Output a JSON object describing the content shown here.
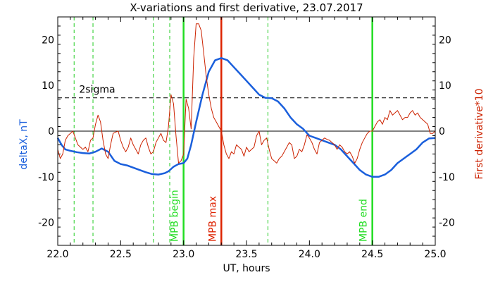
{
  "chart_data": {
    "type": "line",
    "title": "X-variations and first derivative, 23.07.2017",
    "xlabel": "UT, hours",
    "ylabel_left": "deltaX, nT",
    "ylabel_right": "First derivative*10",
    "xlim": [
      22.0,
      25.0
    ],
    "ylim_left": [
      -25,
      25
    ],
    "ylim_right": [
      -25,
      25
    ],
    "xticks": [
      22.0,
      22.5,
      23.0,
      23.5,
      24.0,
      24.5,
      25.0
    ],
    "xtick_labels": [
      "22.0",
      "22.5",
      "23.0",
      "23.5",
      "24.0",
      "24.5",
      "25.0"
    ],
    "yticks": [
      -20,
      -10,
      0,
      10,
      20
    ],
    "ytick_labels": [
      "-20",
      "-10",
      "0",
      "10",
      "20"
    ],
    "grid": false,
    "colors": {
      "deltaX": "#1a5fdc",
      "derivative": "#cc2200",
      "mpb_lines": "#22dd22",
      "mpb_max": "#dd2200",
      "dashed_green": "#22cc22",
      "axis": "#000000",
      "left_label": "#1a5fdc",
      "right_label": "#cc2200"
    },
    "series": [
      {
        "key": "deltaX",
        "values": [
          [
            22.0,
            -1.5
          ],
          [
            22.03,
            -3.0
          ],
          [
            22.06,
            -4.0
          ],
          [
            22.1,
            -4.3
          ],
          [
            22.15,
            -4.6
          ],
          [
            22.2,
            -4.8
          ],
          [
            22.25,
            -4.9
          ],
          [
            22.3,
            -4.5
          ],
          [
            22.35,
            -3.8
          ],
          [
            22.4,
            -4.5
          ],
          [
            22.45,
            -6.5
          ],
          [
            22.5,
            -7.2
          ],
          [
            22.55,
            -7.5
          ],
          [
            22.6,
            -8.0
          ],
          [
            22.65,
            -8.5
          ],
          [
            22.7,
            -9.0
          ],
          [
            22.75,
            -9.4
          ],
          [
            22.8,
            -9.5
          ],
          [
            22.85,
            -9.2
          ],
          [
            22.88,
            -8.8
          ],
          [
            22.92,
            -7.8
          ],
          [
            22.96,
            -7.2
          ],
          [
            23.0,
            -7.0
          ],
          [
            23.03,
            -6.0
          ],
          [
            23.06,
            -3.0
          ],
          [
            23.1,
            2.0
          ],
          [
            23.15,
            8.0
          ],
          [
            23.2,
            13.0
          ],
          [
            23.25,
            15.5
          ],
          [
            23.3,
            16.0
          ],
          [
            23.35,
            15.5
          ],
          [
            23.4,
            14.0
          ],
          [
            23.45,
            12.5
          ],
          [
            23.5,
            11.0
          ],
          [
            23.55,
            9.5
          ],
          [
            23.6,
            8.0
          ],
          [
            23.65,
            7.3
          ],
          [
            23.7,
            7.2
          ],
          [
            23.75,
            6.5
          ],
          [
            23.8,
            5.0
          ],
          [
            23.85,
            3.0
          ],
          [
            23.9,
            1.5
          ],
          [
            23.95,
            0.5
          ],
          [
            24.0,
            -1.0
          ],
          [
            24.05,
            -1.5
          ],
          [
            24.1,
            -2.0
          ],
          [
            24.15,
            -2.5
          ],
          [
            24.2,
            -3.0
          ],
          [
            24.25,
            -4.0
          ],
          [
            24.3,
            -5.5
          ],
          [
            24.35,
            -7.0
          ],
          [
            24.4,
            -8.5
          ],
          [
            24.45,
            -9.5
          ],
          [
            24.5,
            -10.0
          ],
          [
            24.55,
            -10.0
          ],
          [
            24.6,
            -9.5
          ],
          [
            24.65,
            -8.5
          ],
          [
            24.7,
            -7.0
          ],
          [
            24.75,
            -6.0
          ],
          [
            24.8,
            -5.0
          ],
          [
            24.85,
            -4.0
          ],
          [
            24.9,
            -2.5
          ],
          [
            24.95,
            -1.6
          ],
          [
            25.0,
            -1.5
          ]
        ]
      },
      {
        "key": "derivative",
        "values": [
          [
            22.0,
            -4.0
          ],
          [
            22.02,
            -6.0
          ],
          [
            22.04,
            -5.0
          ],
          [
            22.06,
            -2.0
          ],
          [
            22.08,
            -1.0
          ],
          [
            22.1,
            -0.5
          ],
          [
            22.12,
            0.0
          ],
          [
            22.14,
            -1.5
          ],
          [
            22.16,
            -3.0
          ],
          [
            22.18,
            -3.5
          ],
          [
            22.2,
            -4.0
          ],
          [
            22.22,
            -3.5
          ],
          [
            22.24,
            -4.5
          ],
          [
            22.26,
            -2.0
          ],
          [
            22.28,
            -1.5
          ],
          [
            22.3,
            1.5
          ],
          [
            22.32,
            3.5
          ],
          [
            22.34,
            2.0
          ],
          [
            22.36,
            -2.0
          ],
          [
            22.38,
            -5.0
          ],
          [
            22.4,
            -6.0
          ],
          [
            22.42,
            -3.0
          ],
          [
            22.44,
            -0.5
          ],
          [
            22.46,
            -0.2
          ],
          [
            22.48,
            0.0
          ],
          [
            22.5,
            -2.0
          ],
          [
            22.52,
            -3.5
          ],
          [
            22.54,
            -4.5
          ],
          [
            22.56,
            -3.5
          ],
          [
            22.58,
            -1.5
          ],
          [
            22.6,
            -3.0
          ],
          [
            22.62,
            -4.0
          ],
          [
            22.64,
            -5.0
          ],
          [
            22.66,
            -3.0
          ],
          [
            22.68,
            -2.0
          ],
          [
            22.7,
            -1.5
          ],
          [
            22.72,
            -3.5
          ],
          [
            22.74,
            -5.0
          ],
          [
            22.76,
            -4.5
          ],
          [
            22.78,
            -2.5
          ],
          [
            22.8,
            -1.5
          ],
          [
            22.82,
            -0.5
          ],
          [
            22.84,
            -2.0
          ],
          [
            22.86,
            -2.5
          ],
          [
            22.88,
            1.0
          ],
          [
            22.9,
            8.0
          ],
          [
            22.92,
            6.0
          ],
          [
            22.94,
            -1.0
          ],
          [
            22.96,
            -7.0
          ],
          [
            22.98,
            -6.5
          ],
          [
            23.0,
            -5.0
          ],
          [
            23.02,
            7.0
          ],
          [
            23.04,
            5.0
          ],
          [
            23.06,
            0.5
          ],
          [
            23.08,
            16.0
          ],
          [
            23.1,
            23.5
          ],
          [
            23.12,
            23.5
          ],
          [
            23.14,
            22.0
          ],
          [
            23.16,
            17.0
          ],
          [
            23.18,
            12.0
          ],
          [
            23.2,
            8.0
          ],
          [
            23.22,
            5.0
          ],
          [
            23.24,
            3.0
          ],
          [
            23.26,
            2.0
          ],
          [
            23.28,
            1.0
          ],
          [
            23.3,
            0.0
          ],
          [
            23.32,
            -3.0
          ],
          [
            23.34,
            -5.0
          ],
          [
            23.36,
            -6.0
          ],
          [
            23.38,
            -4.5
          ],
          [
            23.4,
            -5.0
          ],
          [
            23.42,
            -3.0
          ],
          [
            23.44,
            -3.5
          ],
          [
            23.46,
            -4.0
          ],
          [
            23.48,
            -5.5
          ],
          [
            23.5,
            -3.5
          ],
          [
            23.52,
            -4.5
          ],
          [
            23.54,
            -4.0
          ],
          [
            23.56,
            -3.5
          ],
          [
            23.58,
            -1.0
          ],
          [
            23.6,
            0.0
          ],
          [
            23.62,
            -3.0
          ],
          [
            23.64,
            -2.0
          ],
          [
            23.66,
            -1.5
          ],
          [
            23.68,
            -4.0
          ],
          [
            23.7,
            -6.0
          ],
          [
            23.72,
            -6.5
          ],
          [
            23.74,
            -7.0
          ],
          [
            23.76,
            -6.0
          ],
          [
            23.78,
            -5.5
          ],
          [
            23.8,
            -4.5
          ],
          [
            23.82,
            -3.5
          ],
          [
            23.84,
            -2.5
          ],
          [
            23.86,
            -3.0
          ],
          [
            23.88,
            -6.0
          ],
          [
            23.9,
            -5.5
          ],
          [
            23.92,
            -4.0
          ],
          [
            23.94,
            -4.5
          ],
          [
            23.96,
            -3.0
          ],
          [
            23.98,
            -0.8
          ],
          [
            24.0,
            -1.5
          ],
          [
            24.02,
            -2.5
          ],
          [
            24.04,
            -4.0
          ],
          [
            24.06,
            -5.0
          ],
          [
            24.08,
            -2.5
          ],
          [
            24.1,
            -2.0
          ],
          [
            24.12,
            -1.5
          ],
          [
            24.14,
            -1.8
          ],
          [
            24.16,
            -2.0
          ],
          [
            24.18,
            -2.5
          ],
          [
            24.2,
            -3.0
          ],
          [
            24.22,
            -4.0
          ],
          [
            24.24,
            -3.0
          ],
          [
            24.26,
            -3.5
          ],
          [
            24.28,
            -4.5
          ],
          [
            24.3,
            -5.0
          ],
          [
            24.32,
            -4.5
          ],
          [
            24.34,
            -5.5
          ],
          [
            24.36,
            -7.0
          ],
          [
            24.38,
            -6.0
          ],
          [
            24.4,
            -4.0
          ],
          [
            24.42,
            -2.5
          ],
          [
            24.44,
            -1.5
          ],
          [
            24.46,
            -0.5
          ],
          [
            24.48,
            0.0
          ],
          [
            24.5,
            0.0
          ],
          [
            24.52,
            1.0
          ],
          [
            24.54,
            2.0
          ],
          [
            24.56,
            2.5
          ],
          [
            24.58,
            1.5
          ],
          [
            24.6,
            3.0
          ],
          [
            24.62,
            2.5
          ],
          [
            24.64,
            4.5
          ],
          [
            24.66,
            3.5
          ],
          [
            24.68,
            4.0
          ],
          [
            24.7,
            4.5
          ],
          [
            24.72,
            3.5
          ],
          [
            24.74,
            2.5
          ],
          [
            24.76,
            3.0
          ],
          [
            24.78,
            3.0
          ],
          [
            24.8,
            4.0
          ],
          [
            24.82,
            4.5
          ],
          [
            24.84,
            3.5
          ],
          [
            24.86,
            4.0
          ],
          [
            24.88,
            3.0
          ],
          [
            24.9,
            2.5
          ],
          [
            24.92,
            2.0
          ],
          [
            24.94,
            1.5
          ],
          [
            24.96,
            -0.5
          ],
          [
            24.98,
            -0.5
          ],
          [
            25.0,
            0.0
          ]
        ]
      }
    ],
    "threshold": {
      "value": 7.3,
      "label": "2sigma"
    },
    "zero_line": 0,
    "markers": [
      {
        "x": 23.0,
        "label": "MPB begin",
        "kind": "mpb"
      },
      {
        "x": 23.3,
        "label": "MPB max",
        "kind": "max"
      },
      {
        "x": 24.5,
        "label": "MPB end",
        "kind": "mpb"
      }
    ],
    "dashed_markers": [
      22.13,
      22.28,
      22.76,
      22.89,
      23.67
    ]
  }
}
